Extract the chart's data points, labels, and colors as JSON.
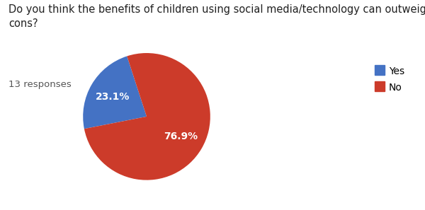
{
  "title": "Do you think the benefits of children using social media/technology can outweigh the\ncons?",
  "subtitle": "13 responses",
  "labels": [
    "Yes",
    "No"
  ],
  "values": [
    23.1,
    76.9
  ],
  "colors": [
    "#4472c4",
    "#cc3b2a"
  ],
  "legend_labels": [
    "Yes",
    "No"
  ],
  "background_color": "#ffffff",
  "text_color": "#212121",
  "subtitle_color": "#555555",
  "title_fontsize": 10.5,
  "subtitle_fontsize": 9.5,
  "autopct_fontsize": 10,
  "legend_fontsize": 10,
  "startangle": -252
}
